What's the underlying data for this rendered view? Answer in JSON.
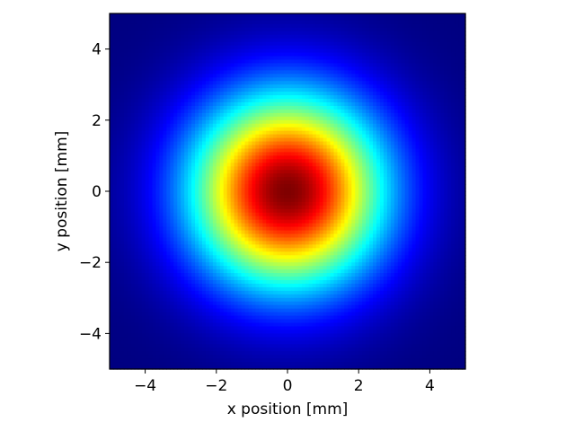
{
  "chart_data": {
    "type": "heatmap",
    "title": "",
    "xlabel": "x position [mm]",
    "ylabel": "y position [mm]",
    "xlim": [
      -5,
      5
    ],
    "ylim": [
      -5,
      5
    ],
    "x_ticks": [
      -4,
      -2,
      0,
      2,
      4
    ],
    "y_ticks": [
      -4,
      -2,
      0,
      2,
      4
    ],
    "x_tick_labels": [
      "−4",
      "−2",
      "0",
      "2",
      "4"
    ],
    "y_tick_labels": [
      "−4",
      "−2",
      "0",
      "2",
      "4"
    ],
    "colormap": "jet",
    "grid": false,
    "field": {
      "kind": "gaussian-2d",
      "center": [
        0,
        0
      ],
      "peak": 1.0,
      "sigma_mm": 1.9,
      "grid_points": 100
    }
  }
}
